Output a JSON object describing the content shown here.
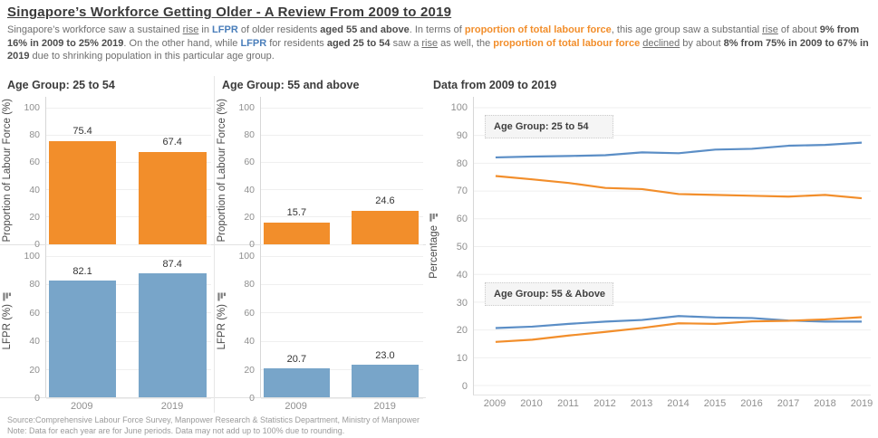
{
  "header": {
    "title": "Singapore’s Workforce Getting Older - A Review From 2009 to 2019",
    "segments": [
      {
        "t": "Singapore’s workforce saw a sustained ",
        "s": ""
      },
      {
        "t": "rise",
        "s": "u"
      },
      {
        "t": " in ",
        "s": ""
      },
      {
        "t": "LFPR",
        "s": "blue"
      },
      {
        "t": " of older residents ",
        "s": ""
      },
      {
        "t": "aged 55 and above",
        "s": "b"
      },
      {
        "t": ". In terms of ",
        "s": ""
      },
      {
        "t": "proportion of total labour force",
        "s": "orange"
      },
      {
        "t": ", this age group saw a substantial ",
        "s": ""
      },
      {
        "t": "rise",
        "s": "u"
      },
      {
        "t": " of about ",
        "s": ""
      },
      {
        "t": "9% from 16% in 2009 to 25% 2019",
        "s": "b"
      },
      {
        "t": ". On the other hand, while ",
        "s": ""
      },
      {
        "t": "LFPR",
        "s": "blue"
      },
      {
        "t": " for residents ",
        "s": ""
      },
      {
        "t": "aged 25 to 54",
        "s": "b"
      },
      {
        "t": " saw a ",
        "s": ""
      },
      {
        "t": "rise",
        "s": "u"
      },
      {
        "t": " as well, the ",
        "s": ""
      },
      {
        "t": "proportion of total labour force",
        "s": "orange"
      },
      {
        "t": " ",
        "s": ""
      },
      {
        "t": "declined",
        "s": "u"
      },
      {
        "t": " by about ",
        "s": ""
      },
      {
        "t": "8% from 75% in 2009 to 67% in 2019",
        "s": "b"
      },
      {
        "t": " due to shrinking population in this particular age group.",
        "s": ""
      }
    ]
  },
  "panels": [
    {
      "title": "Age Group: 25 to 54"
    },
    {
      "title": "Age Group: 55 and above"
    },
    {
      "title": "Data from 2009 to 2019"
    }
  ],
  "colors": {
    "orange": "#f28e2b",
    "bar_blue": "#78a5c9",
    "line_blue": "#5b8ec6",
    "grid": "#efefef",
    "tick_text": "#8f8f8f"
  },
  "chart_data": [
    {
      "type": "bar",
      "panel": "Age Group: 25 to 54",
      "ylabel": "Proportion of Labour Force (%)",
      "sorted": false,
      "categories": [
        "2009",
        "2019"
      ],
      "values": [
        75.4,
        67.4
      ],
      "color_key": "orange",
      "ylim": [
        0,
        100
      ],
      "yticks": [
        100,
        80,
        60,
        40,
        20,
        0
      ]
    },
    {
      "type": "bar",
      "panel": "Age Group: 25 to 54",
      "ylabel": "LFPR (%)",
      "sorted": true,
      "categories": [
        "2009",
        "2019"
      ],
      "values": [
        82.1,
        87.4
      ],
      "color_key": "bar_blue",
      "ylim": [
        0,
        100
      ],
      "yticks": [
        100,
        80,
        60,
        40,
        20,
        0
      ]
    },
    {
      "type": "bar",
      "panel": "Age Group: 55 and above",
      "ylabel": "Proportion of Labour Force (%)",
      "sorted": false,
      "categories": [
        "2009",
        "2019"
      ],
      "values": [
        15.7,
        24.6
      ],
      "color_key": "orange",
      "ylim": [
        0,
        100
      ],
      "yticks": [
        100,
        80,
        60,
        40,
        20,
        0
      ]
    },
    {
      "type": "bar",
      "panel": "Age Group: 55 and above",
      "ylabel": "LFPR (%)",
      "sorted": true,
      "categories": [
        "2009",
        "2019"
      ],
      "values": [
        20.7,
        23.0
      ],
      "color_key": "bar_blue",
      "ylim": [
        0,
        100
      ],
      "yticks": [
        100,
        80,
        60,
        40,
        20,
        0
      ]
    },
    {
      "type": "line",
      "panel": "Data from 2009 to 2019",
      "ylabel": "Percentage",
      "sorted": true,
      "x": [
        "2009",
        "2010",
        "2011",
        "2012",
        "2013",
        "2014",
        "2015",
        "2016",
        "2017",
        "2018",
        "2019"
      ],
      "ylim": [
        0,
        100
      ],
      "yticks": [
        100,
        90,
        80,
        70,
        60,
        50,
        40,
        30,
        20,
        10,
        0
      ],
      "series": [
        {
          "name": "LFPR - Age Group 25 to 54",
          "color_key": "line_blue",
          "values": [
            82.1,
            82.4,
            82.6,
            82.9,
            83.9,
            83.6,
            84.9,
            85.2,
            86.3,
            86.6,
            87.4
          ]
        },
        {
          "name": "Proportion of Labour Force - Age Group 25 to 54",
          "color_key": "orange",
          "values": [
            75.4,
            74.2,
            72.9,
            71.1,
            70.7,
            68.9,
            68.6,
            68.3,
            68.0,
            68.6,
            67.4
          ]
        },
        {
          "name": "LFPR - Age Group 55 and above",
          "color_key": "line_blue",
          "values": [
            20.7,
            21.2,
            22.2,
            23.0,
            23.6,
            25.0,
            24.5,
            24.3,
            23.4,
            23.0,
            23.0
          ]
        },
        {
          "name": "Proportion of Labour Force - Age Group 55 and above",
          "color_key": "orange",
          "values": [
            15.7,
            16.5,
            18.0,
            19.3,
            20.7,
            22.4,
            22.2,
            23.1,
            23.3,
            23.8,
            24.6
          ]
        }
      ],
      "annotations": [
        {
          "label": "Age Group: 25 to 54",
          "y": 97.5
        },
        {
          "label": "Age Group: 55 & Above",
          "y": 37.5
        }
      ]
    }
  ],
  "footer": {
    "source": "Source:Comprehensive Labour Force Survey, Manpower Research & Statistics Department, Ministry of Manpower",
    "note": "Note: Data for each year are for June periods. Data may not add up to 100% due to rounding."
  }
}
